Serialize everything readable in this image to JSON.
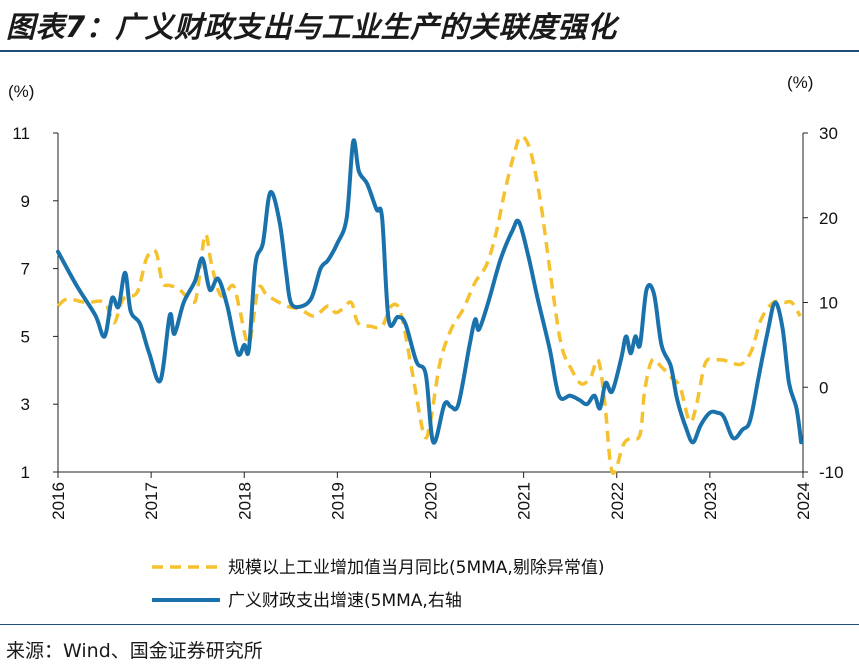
{
  "title": "图表7：广义财政支出与工业生产的关联度强化",
  "source": "来源：Wind、国金证券研究所",
  "chart_data": {
    "type": "line",
    "left_axis": {
      "unit": "(%)",
      "ylim": [
        1,
        11
      ],
      "ticks": [
        1,
        3,
        5,
        7,
        9,
        11
      ]
    },
    "right_axis": {
      "unit": "(%)",
      "ylim": [
        -10,
        30
      ],
      "ticks": [
        -10,
        0,
        10,
        20,
        30
      ]
    },
    "x_axis": {
      "xlim": [
        2016.0,
        2024.0
      ],
      "ticks": [
        "2016",
        "2017",
        "2018",
        "2019",
        "2020",
        "2021",
        "2022",
        "2023",
        "2024"
      ]
    },
    "colors": {
      "industrial": "#f5c12e",
      "fiscal": "#1a72ad"
    },
    "series": [
      {
        "name": "规模以上工业增加值当月同比(5MMA,剔除异常值)",
        "axis": "left",
        "style": "dashed",
        "color": "#f5c12e",
        "points": [
          [
            2016.0,
            5.9
          ],
          [
            2016.1,
            6.1
          ],
          [
            2016.3,
            6.0
          ],
          [
            2016.5,
            6.0
          ],
          [
            2016.6,
            5.4
          ],
          [
            2016.7,
            6.1
          ],
          [
            2016.85,
            6.3
          ],
          [
            2016.95,
            7.3
          ],
          [
            2017.05,
            7.5
          ],
          [
            2017.12,
            6.6
          ],
          [
            2017.2,
            6.5
          ],
          [
            2017.3,
            6.4
          ],
          [
            2017.45,
            6.0
          ],
          [
            2017.5,
            6.4
          ],
          [
            2017.58,
            8.0
          ],
          [
            2017.65,
            7.1
          ],
          [
            2017.75,
            6.2
          ],
          [
            2017.88,
            6.5
          ],
          [
            2017.95,
            5.8
          ],
          [
            2018.05,
            4.8
          ],
          [
            2018.15,
            6.4
          ],
          [
            2018.25,
            6.2
          ],
          [
            2018.45,
            5.9
          ],
          [
            2018.6,
            5.8
          ],
          [
            2018.75,
            5.6
          ],
          [
            2018.9,
            5.9
          ],
          [
            2018.98,
            5.7
          ],
          [
            2019.05,
            5.8
          ],
          [
            2019.15,
            6.0
          ],
          [
            2019.22,
            5.4
          ],
          [
            2019.35,
            5.3
          ],
          [
            2019.48,
            5.3
          ],
          [
            2019.58,
            5.9
          ],
          [
            2019.68,
            5.7
          ],
          [
            2019.8,
            4.0
          ],
          [
            2019.93,
            2.1
          ],
          [
            2020.0,
            2.5
          ],
          [
            2020.1,
            4.2
          ],
          [
            2020.22,
            5.2
          ],
          [
            2020.35,
            5.8
          ],
          [
            2020.48,
            6.6
          ],
          [
            2020.6,
            7.1
          ],
          [
            2020.7,
            8.0
          ],
          [
            2020.8,
            9.3
          ],
          [
            2020.9,
            10.4
          ],
          [
            2020.97,
            10.9
          ],
          [
            2021.07,
            10.5
          ],
          [
            2021.18,
            9.0
          ],
          [
            2021.28,
            7.0
          ],
          [
            2021.4,
            4.8
          ],
          [
            2021.52,
            4.0
          ],
          [
            2021.62,
            3.6
          ],
          [
            2021.72,
            3.8
          ],
          [
            2021.8,
            4.3
          ],
          [
            2021.87,
            3.1
          ],
          [
            2021.93,
            1.3
          ],
          [
            2021.98,
            1.0
          ],
          [
            2022.07,
            1.8
          ],
          [
            2022.15,
            2.0
          ],
          [
            2022.25,
            2.1
          ],
          [
            2022.3,
            3.4
          ],
          [
            2022.38,
            4.3
          ],
          [
            2022.48,
            4.1
          ],
          [
            2022.58,
            3.8
          ],
          [
            2022.68,
            3.5
          ],
          [
            2022.78,
            2.5
          ],
          [
            2022.85,
            2.9
          ],
          [
            2022.95,
            4.2
          ],
          [
            2023.05,
            4.3
          ],
          [
            2023.15,
            4.3
          ],
          [
            2023.25,
            4.2
          ],
          [
            2023.35,
            4.2
          ],
          [
            2023.45,
            4.6
          ],
          [
            2023.55,
            5.5
          ],
          [
            2023.68,
            6.0
          ],
          [
            2023.8,
            6.0
          ],
          [
            2023.88,
            6.0
          ],
          [
            2023.97,
            5.6
          ]
        ]
      },
      {
        "name": "广义财政支出增速(5MMA,右轴",
        "axis": "right",
        "style": "solid",
        "color": "#1a72ad",
        "points": [
          [
            2016.0,
            16.0
          ],
          [
            2016.2,
            12.0
          ],
          [
            2016.4,
            8.5
          ],
          [
            2016.5,
            6.0
          ],
          [
            2016.58,
            10.5
          ],
          [
            2016.65,
            9.5
          ],
          [
            2016.72,
            13.5
          ],
          [
            2016.78,
            9.0
          ],
          [
            2016.88,
            7.5
          ],
          [
            2016.98,
            4.0
          ],
          [
            2017.1,
            0.8
          ],
          [
            2017.2,
            8.5
          ],
          [
            2017.25,
            6.3
          ],
          [
            2017.35,
            10.0
          ],
          [
            2017.47,
            12.5
          ],
          [
            2017.55,
            15.2
          ],
          [
            2017.63,
            11.5
          ],
          [
            2017.72,
            12.8
          ],
          [
            2017.82,
            9.5
          ],
          [
            2017.93,
            4.0
          ],
          [
            2018.0,
            5.0
          ],
          [
            2018.05,
            4.5
          ],
          [
            2018.12,
            14.5
          ],
          [
            2018.2,
            17.0
          ],
          [
            2018.28,
            23.0
          ],
          [
            2018.38,
            19.5
          ],
          [
            2018.45,
            13.5
          ],
          [
            2018.5,
            10.0
          ],
          [
            2018.6,
            9.5
          ],
          [
            2018.72,
            10.5
          ],
          [
            2018.82,
            14.0
          ],
          [
            2018.9,
            15.0
          ],
          [
            2019.0,
            17.0
          ],
          [
            2019.1,
            20.0
          ],
          [
            2019.17,
            29.0
          ],
          [
            2019.23,
            25.5
          ],
          [
            2019.32,
            24.0
          ],
          [
            2019.42,
            21.0
          ],
          [
            2019.48,
            20.0
          ],
          [
            2019.55,
            8.0
          ],
          [
            2019.65,
            8.3
          ],
          [
            2019.73,
            7.5
          ],
          [
            2019.85,
            3.0
          ],
          [
            2019.95,
            1.5
          ],
          [
            2020.03,
            -6.5
          ],
          [
            2020.15,
            -2.0
          ],
          [
            2020.22,
            -2.3
          ],
          [
            2020.3,
            -2.0
          ],
          [
            2020.42,
            5.0
          ],
          [
            2020.48,
            8.0
          ],
          [
            2020.52,
            6.8
          ],
          [
            2020.62,
            10.0
          ],
          [
            2020.75,
            15.0
          ],
          [
            2020.88,
            18.5
          ],
          [
            2020.95,
            19.5
          ],
          [
            2021.05,
            15.5
          ],
          [
            2021.15,
            10.5
          ],
          [
            2021.28,
            4.5
          ],
          [
            2021.38,
            -1.0
          ],
          [
            2021.5,
            -1.0
          ],
          [
            2021.6,
            -1.5
          ],
          [
            2021.68,
            -2.0
          ],
          [
            2021.76,
            -1.0
          ],
          [
            2021.82,
            -2.5
          ],
          [
            2021.88,
            0.5
          ],
          [
            2021.95,
            -0.5
          ],
          [
            2022.05,
            3.5
          ],
          [
            2022.1,
            6.0
          ],
          [
            2022.15,
            4.0
          ],
          [
            2022.2,
            6.0
          ],
          [
            2022.25,
            5.0
          ],
          [
            2022.32,
            11.5
          ],
          [
            2022.4,
            11.0
          ],
          [
            2022.48,
            5.0
          ],
          [
            2022.58,
            2.5
          ],
          [
            2022.65,
            -1.5
          ],
          [
            2022.75,
            -5.0
          ],
          [
            2022.82,
            -6.5
          ],
          [
            2022.9,
            -4.5
          ],
          [
            2023.0,
            -3.0
          ],
          [
            2023.08,
            -3.0
          ],
          [
            2023.15,
            -3.5
          ],
          [
            2023.25,
            -6.0
          ],
          [
            2023.35,
            -5.0
          ],
          [
            2023.43,
            -4.0
          ],
          [
            2023.52,
            1.0
          ],
          [
            2023.62,
            6.5
          ],
          [
            2023.7,
            10.0
          ],
          [
            2023.78,
            7.0
          ],
          [
            2023.85,
            0.5
          ],
          [
            2023.93,
            -2.5
          ],
          [
            2023.98,
            -6.5
          ]
        ]
      }
    ]
  }
}
